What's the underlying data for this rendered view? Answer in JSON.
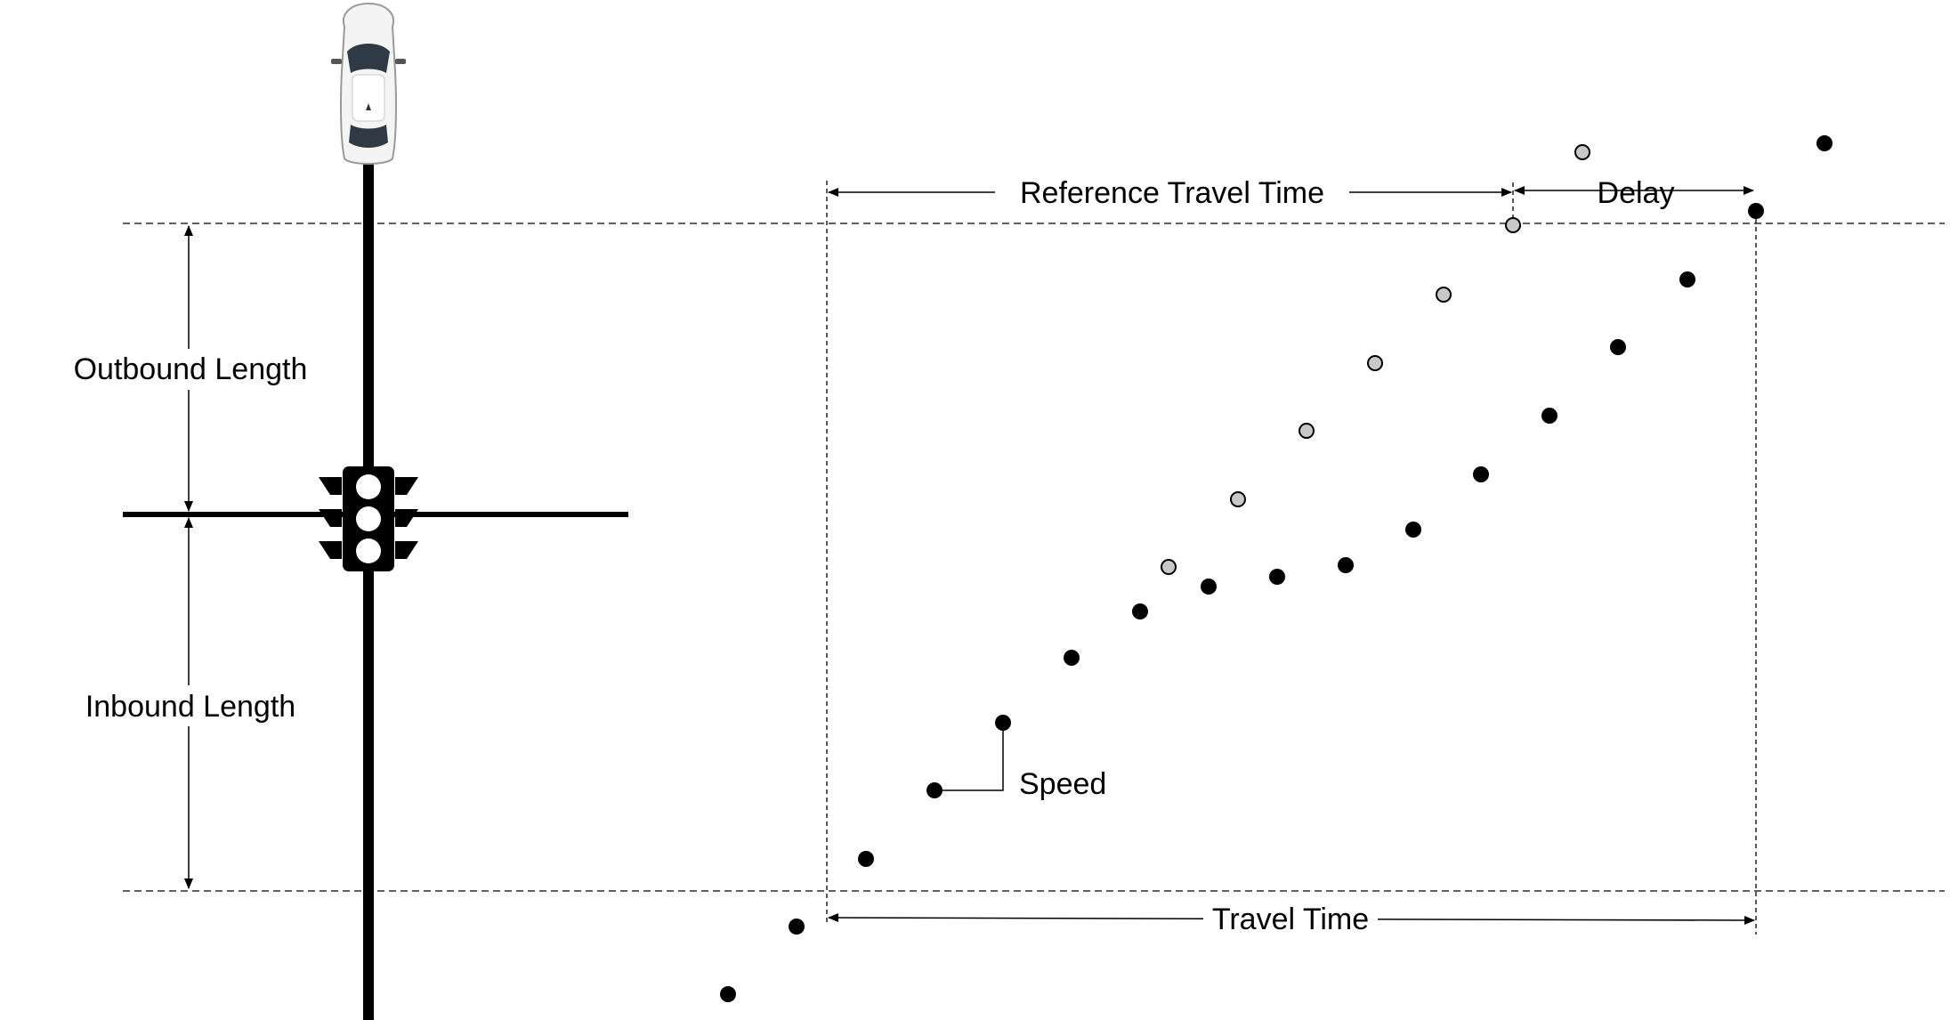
{
  "labels": {
    "reference_travel_time": "Reference Travel Time",
    "delay": "Delay",
    "outbound_length": "Outbound Length",
    "inbound_length": "Inbound Length",
    "speed": "Speed",
    "travel_time": "Travel Time"
  },
  "colors": {
    "ink": "#000000",
    "reference_point_fill": "#c8c8c8",
    "background": "#ffffff"
  },
  "icons": {
    "vehicle": "car-top-view-icon",
    "signal": "traffic-signal-icon"
  }
}
